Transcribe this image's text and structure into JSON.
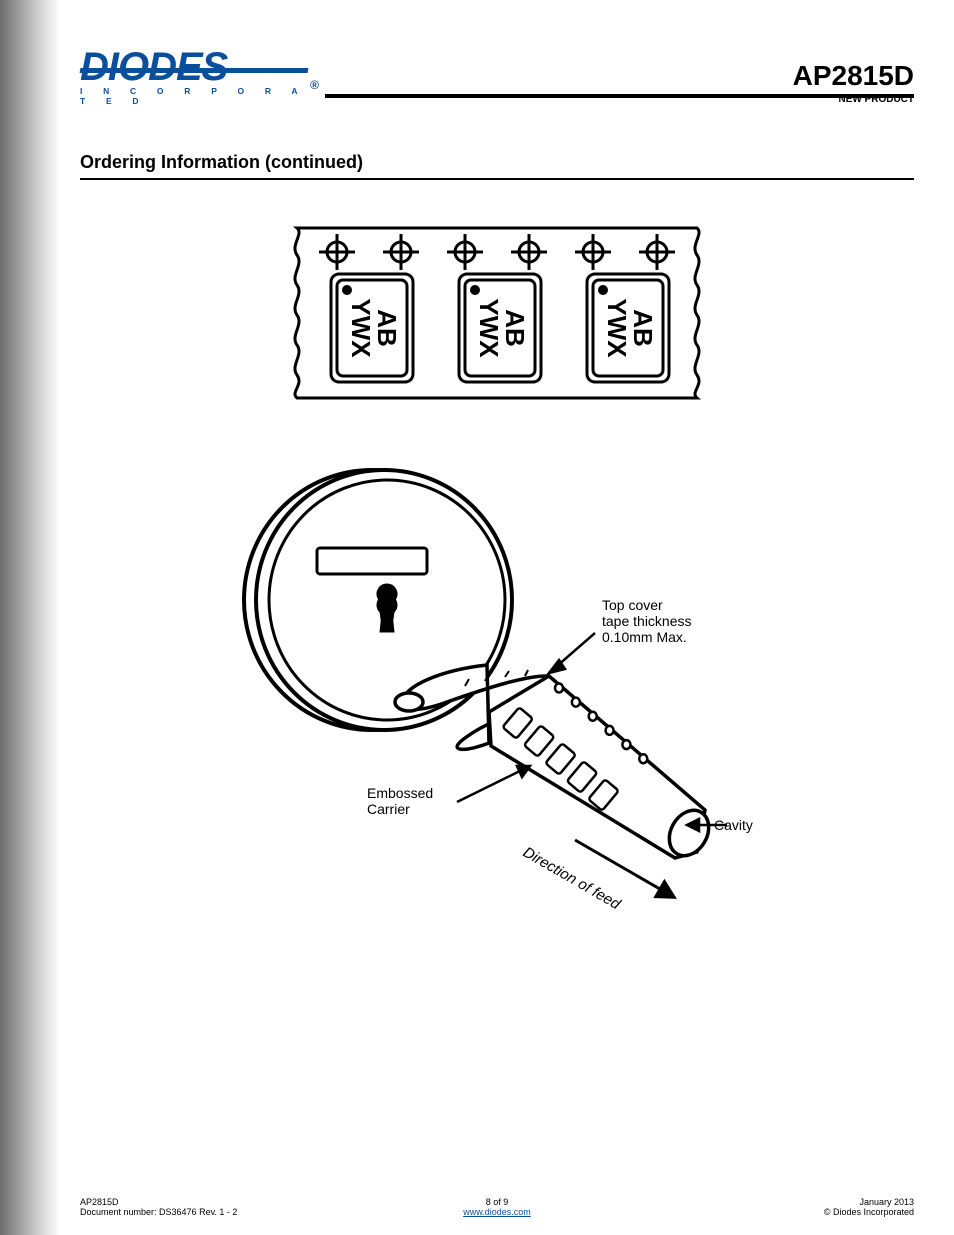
{
  "logo": {
    "main": "DIODES",
    "sub": "I N C O R P O R A T E D",
    "reg": "®"
  },
  "header": {
    "part_no": "AP2815D",
    "new_prod": "NEW PRODUCT"
  },
  "section_title": "Ordering Information (continued)",
  "tape_diagram": {
    "type": "diagram",
    "chip_text_line1": "AB",
    "chip_text_line2": "YWX",
    "num_chips": 3,
    "num_sprockets": 6,
    "stroke": "#000000",
    "fill": "#ffffff"
  },
  "reel_diagram": {
    "type": "diagram",
    "label_top_cover_1": "Top cover",
    "label_top_cover_2": "tape thickness",
    "label_top_cover_3": "0.10mm Max.",
    "label_embossed_1": "Embossed",
    "label_embossed_2": "Carrier",
    "label_cavity": "Cavity",
    "label_feed": "Direction of feed",
    "stroke": "#000000",
    "fill": "#ffffff",
    "font_family": "Arial",
    "font_size_labels": 14,
    "font_size_feed": 15
  },
  "footer": {
    "left_1": "AP2815D",
    "left_2": "Document number: DS36476 Rev. 1 - 2",
    "mid_1": "8 of 9",
    "mid_2": "www.diodes.com",
    "right_1": "January 2013",
    "right_2": "© Diodes Incorporated"
  }
}
